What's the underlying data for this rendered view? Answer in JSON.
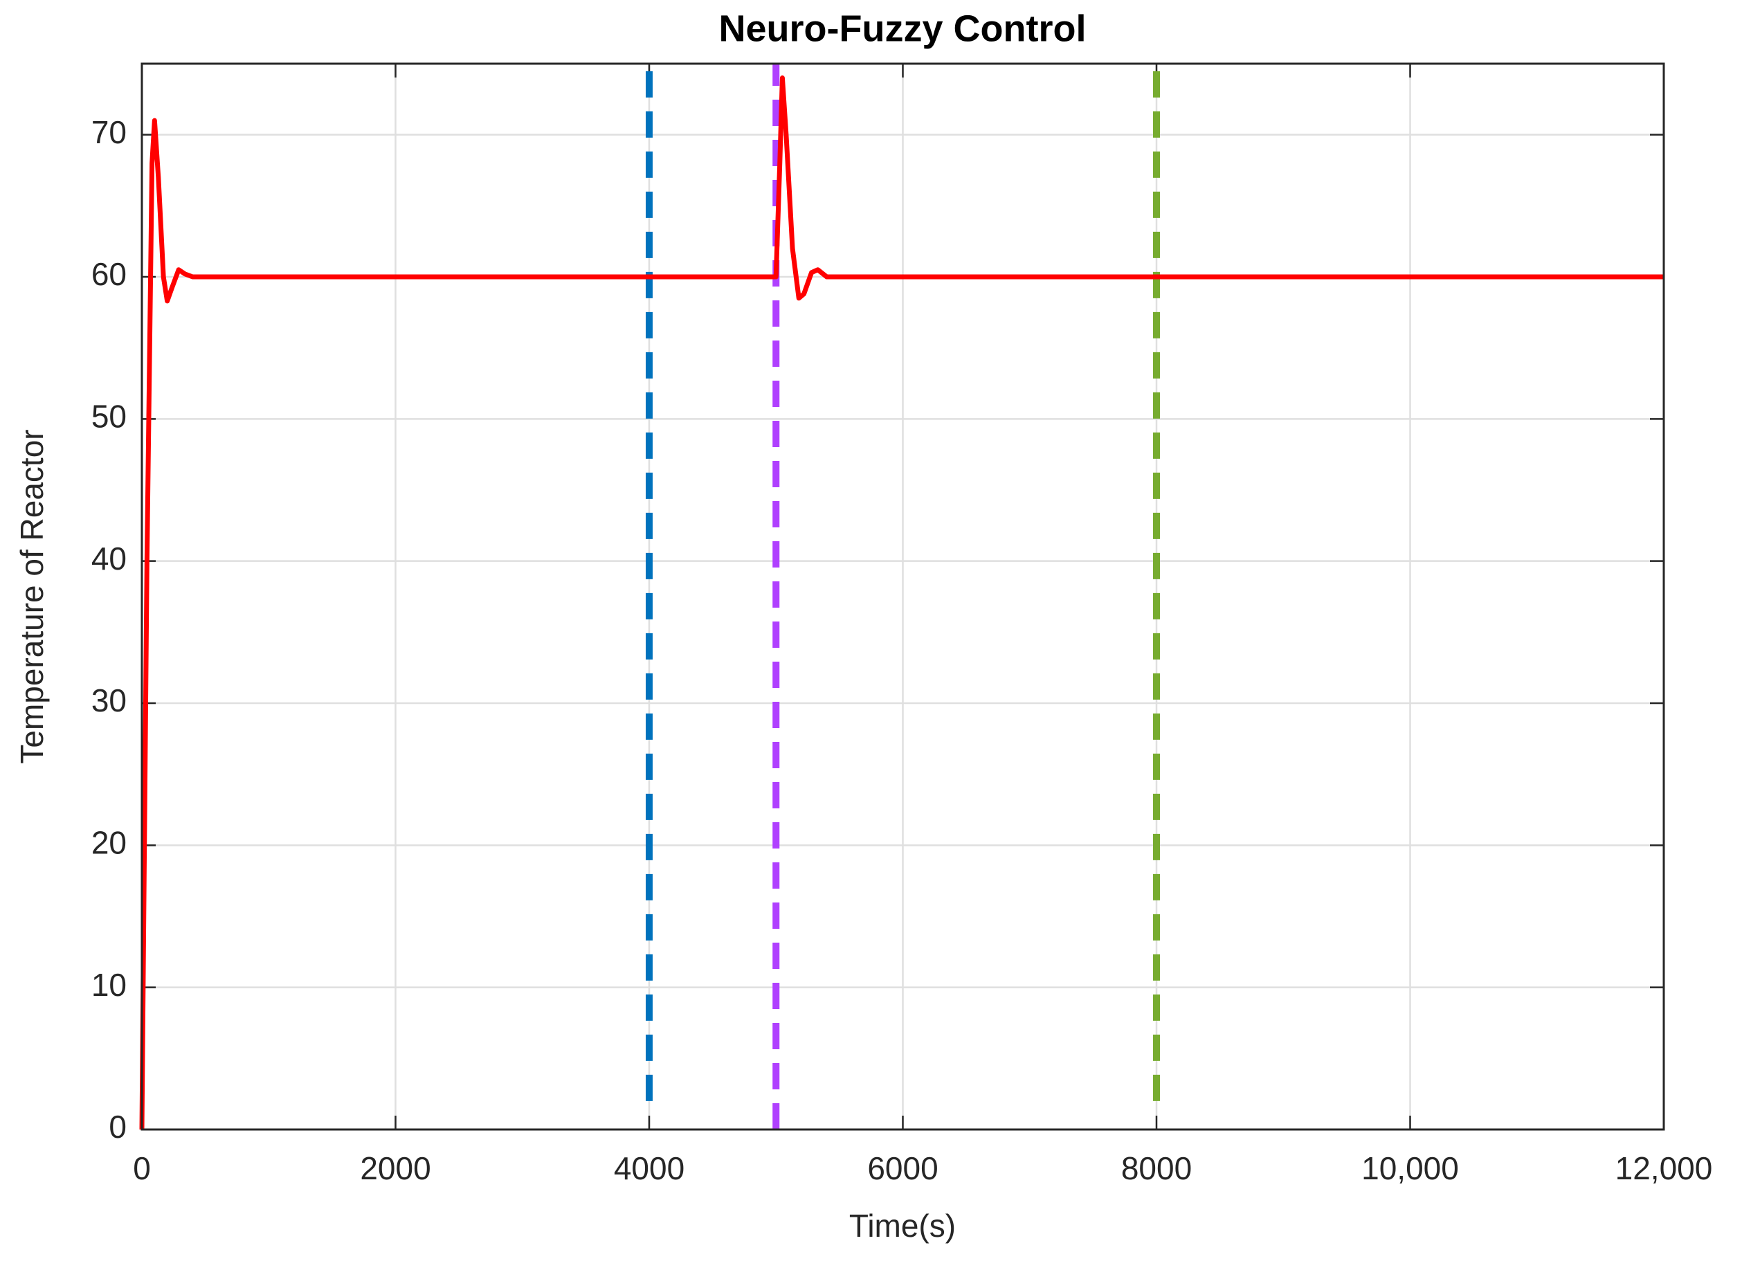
{
  "chart_data": {
    "type": "line",
    "title": "Neuro-Fuzzy Control",
    "x_label": "Time(s)",
    "y_label": "Temperature of Reactor",
    "xlim": [
      0,
      12000
    ],
    "ylim": [
      0,
      75
    ],
    "xticks": [
      0,
      2000,
      4000,
      6000,
      8000,
      {
        "value": 10000,
        "label": "10,000"
      },
      {
        "value": 12000,
        "label": "12,000"
      }
    ],
    "yticks": [
      0,
      10,
      20,
      30,
      40,
      50,
      60,
      70
    ],
    "grid": true,
    "series": [
      {
        "color": "#0072bd",
        "style": "dashed",
        "x": [
          4000,
          4000
        ],
        "values": [
          2,
          75
        ]
      },
      {
        "color": "#b040ff",
        "style": "dashed",
        "x": [
          5000,
          5000
        ],
        "values": [
          0,
          75
        ]
      },
      {
        "color": "#77ac30",
        "style": "dashed",
        "x": [
          8000,
          8000
        ],
        "values": [
          2,
          75
        ]
      },
      {
        "color": "#ff0000",
        "style": "solid",
        "x": [
          0,
          40,
          80,
          100,
          130,
          170,
          200,
          240,
          290,
          340,
          400,
          4990,
          5000,
          5030,
          5050,
          5080,
          5130,
          5180,
          5220,
          5280,
          5330,
          5400,
          12000
        ],
        "values": [
          0,
          40,
          68,
          71,
          67,
          60,
          58.3,
          59.3,
          60.5,
          60.2,
          60,
          60,
          60,
          68,
          74,
          70,
          62,
          58.5,
          58.8,
          60.3,
          60.5,
          60,
          60
        ]
      }
    ]
  }
}
